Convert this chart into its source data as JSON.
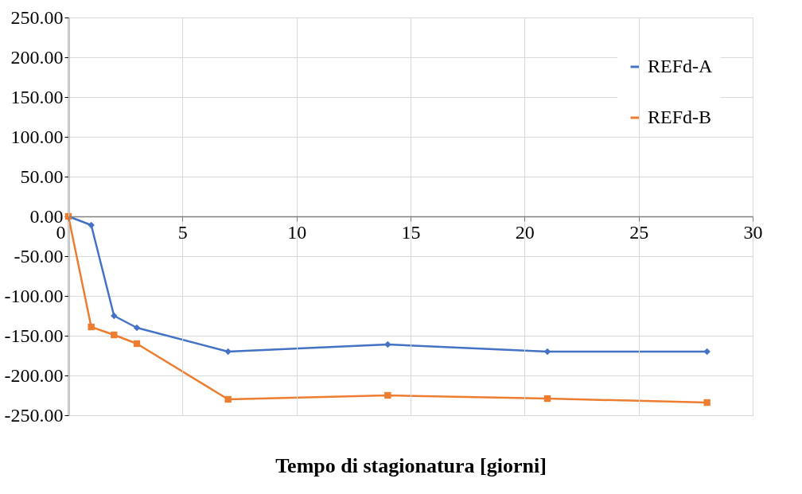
{
  "chart_data": {
    "type": "line",
    "xlabel": "Tempo di stagionatura [giorni]",
    "x": [
      0,
      1,
      2,
      3,
      7,
      14,
      21,
      28
    ],
    "series": [
      {
        "name": "REFd-A",
        "color": "#4472c4",
        "marker": "diamond",
        "values": [
          0,
          -11,
          -125,
          -140,
          -170,
          -161,
          -170,
          -170
        ]
      },
      {
        "name": "REFd-B",
        "color": "#ed7d31",
        "marker": "square",
        "values": [
          0,
          -139,
          -149,
          -160,
          -230,
          -225,
          -229,
          -234
        ]
      }
    ],
    "xlim": [
      0,
      30
    ],
    "xticks": [
      0,
      5,
      10,
      15,
      20,
      25,
      30
    ],
    "ylim": [
      -250,
      250
    ],
    "yticks": [
      {
        "value": -250,
        "label": "-250.00"
      },
      {
        "value": -200,
        "label": "-200.00"
      },
      {
        "value": -150,
        "label": "-150.00"
      },
      {
        "value": -100,
        "label": "-100.00"
      },
      {
        "value": -50,
        "label": "-50.00"
      },
      {
        "value": 0,
        "label": "0.00"
      },
      {
        "value": 50,
        "label": "50.00"
      },
      {
        "value": 100,
        "label": "100.00"
      },
      {
        "value": 150,
        "label": "150.00"
      },
      {
        "value": 200,
        "label": "200.00"
      },
      {
        "value": 250,
        "label": "250.00"
      }
    ],
    "grid": true,
    "legend": "top right",
    "line_style": "solid"
  }
}
